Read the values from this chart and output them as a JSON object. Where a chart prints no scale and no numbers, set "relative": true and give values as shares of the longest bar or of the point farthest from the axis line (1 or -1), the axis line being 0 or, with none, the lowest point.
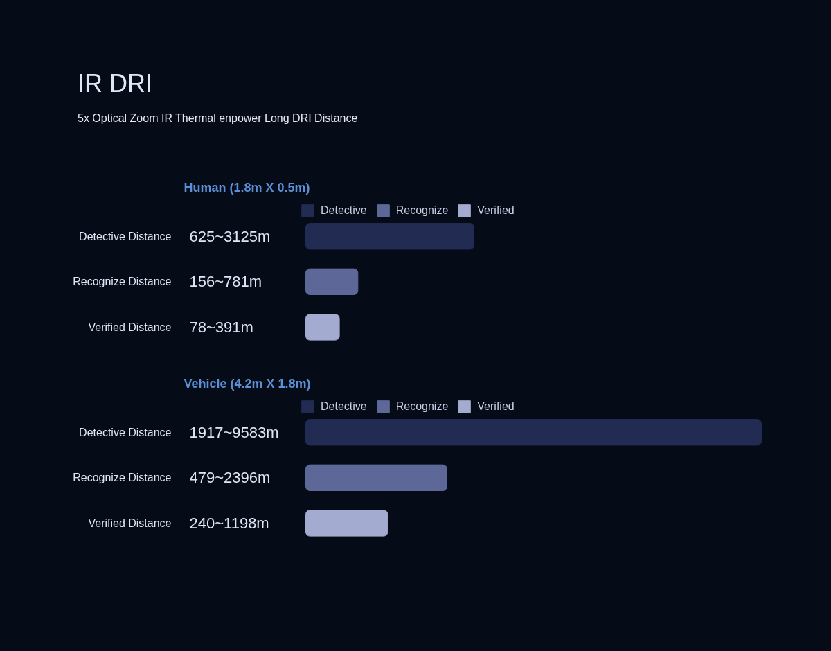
{
  "chart_data": [
    {
      "type": "other",
      "title": "IR DRI",
      "subtitle": "5x Optical Zoom IR Thermal enpower Long DRI Distance"
    },
    {
      "type": "bar",
      "orientation": "horizontal",
      "relative": true,
      "title": "Human (1.8m X 0.5m)",
      "legend": "top",
      "categories": [
        "Detective Distance",
        "Recognize Distance",
        "Verified Distance"
      ],
      "series": [
        {
          "name": "Detective",
          "color": "#222b52",
          "values": [
            1,
            null,
            null
          ]
        },
        {
          "name": "Recognize",
          "color": "#5e6898",
          "values": [
            null,
            0.31,
            null
          ]
        },
        {
          "name": "Verified",
          "color": "#a3abd0",
          "values": [
            null,
            null,
            0.2
          ]
        }
      ],
      "annotations": [
        "625~3125m",
        "156~781m",
        "78~391m"
      ]
    },
    {
      "type": "bar",
      "orientation": "horizontal",
      "relative": true,
      "title": "Vehicle (4.2m X 1.8m)",
      "legend": "top",
      "categories": [
        "Detective Distance",
        "Recognize Distance",
        "Verified Distance"
      ],
      "series": [
        {
          "name": "Detective",
          "color": "#222b52",
          "values": [
            1,
            null,
            null
          ]
        },
        {
          "name": "Recognize",
          "color": "#5e6898",
          "values": [
            null,
            0.31,
            null
          ]
        },
        {
          "name": "Verified",
          "color": "#a3abd0",
          "values": [
            null,
            null,
            0.18
          ]
        }
      ],
      "annotations": [
        "1917~9583m",
        "479~2396m",
        "240~1198m"
      ]
    }
  ]
}
